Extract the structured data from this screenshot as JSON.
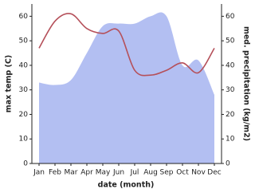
{
  "chart_data": {
    "type": "line",
    "x_label": "date (month)",
    "y_label": "max temp (C)",
    "y2_label": "med. precipitation (kg/m2)",
    "categories": [
      "Jan",
      "Feb",
      "Mar",
      "Apr",
      "May",
      "Jun",
      "Jul",
      "Aug",
      "Sep",
      "Oct",
      "Nov",
      "Dec"
    ],
    "series": [
      {
        "name": "med. precipitation",
        "type": "area",
        "axis": "y2",
        "color": "#b3bff2",
        "values": [
          33,
          32,
          34,
          45,
          56,
          57,
          57,
          60,
          60,
          40,
          42,
          28
        ]
      },
      {
        "name": "max temp",
        "type": "line",
        "color": "#b5505a",
        "values": [
          47,
          58,
          61,
          55,
          53,
          54,
          38,
          36,
          38,
          41,
          37,
          47
        ]
      }
    ],
    "ylim": [
      0,
      65
    ],
    "yticks": [
      0,
      10,
      20,
      30,
      40,
      50,
      60
    ],
    "y2lim": [
      0,
      65
    ],
    "y2ticks": [
      0,
      10,
      20,
      30,
      40,
      50,
      60
    ]
  }
}
